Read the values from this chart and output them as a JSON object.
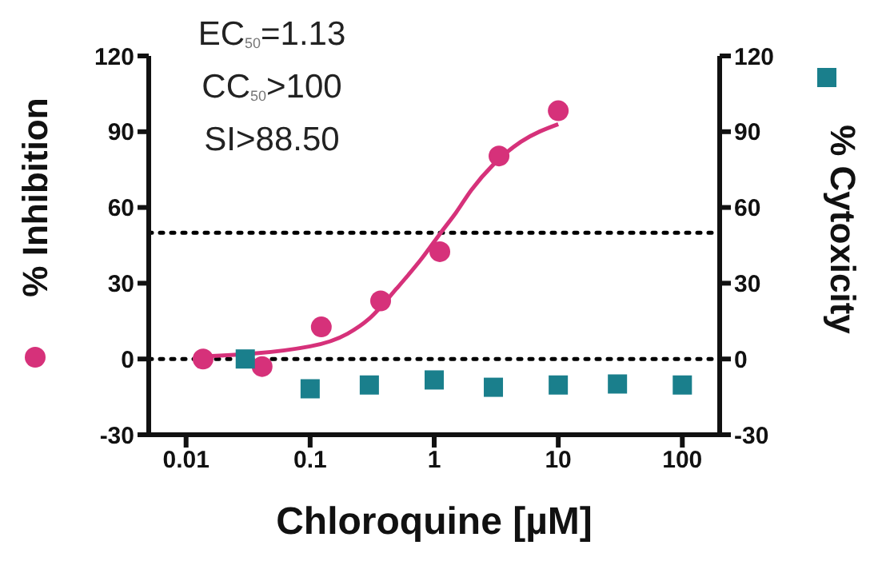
{
  "chart_data": {
    "type": "scatter",
    "xlabel": "Chloroquine [µM]",
    "ylabel": "% Inhibition",
    "y2label": "% Cytoxicity",
    "log": "x",
    "xlim": [
      0.005,
      200
    ],
    "xticks": [
      0.01,
      0.1,
      1,
      10,
      100
    ],
    "ylim": [
      -30,
      120
    ],
    "yticks": [
      -30,
      0,
      30,
      60,
      90,
      120
    ],
    "y2lim": [
      -30,
      120
    ],
    "y2ticks": [
      -30,
      0,
      30,
      60,
      90,
      120
    ],
    "annotations": [
      "EC$_{50}$=1.13",
      "CC$_{50}$>100",
      "SI>88.50"
    ],
    "ref_lines": [
      {
        "axis": "y",
        "value": 0,
        "color": "#000000",
        "line_style": "dotted"
      },
      {
        "axis": "y",
        "value": 50,
        "color": "#000000",
        "line_style": "dotted"
      }
    ],
    "series": [
      {
        "color": "#d6317a",
        "marker": "circle",
        "x": [
          0.0137,
          0.041,
          0.123,
          0.37,
          1.11,
          3.33,
          10
        ],
        "values": [
          0,
          -3,
          12.7,
          23,
          42.5,
          80.4,
          98.3
        ]
      },
      {
        "type": "line",
        "color": "#d6317a",
        "marker": "none",
        "line_style": "solid",
        "x": [
          0.0137,
          0.1,
          0.2,
          0.3,
          0.5,
          0.8,
          1.13,
          1.5,
          2,
          3,
          5,
          10
        ],
        "values": [
          1,
          5,
          10,
          16,
          28,
          40,
          50,
          58,
          67,
          77,
          86,
          93
        ]
      },
      {
        "color": "#1a7f8c",
        "marker": "square",
        "axis": "y2",
        "x": [
          0.03,
          0.1,
          0.3,
          1,
          3,
          10,
          30,
          100
        ],
        "values": [
          0,
          -11.8,
          -10.3,
          -8.3,
          -11.2,
          -10.3,
          -9.9,
          -10.3
        ]
      }
    ]
  }
}
